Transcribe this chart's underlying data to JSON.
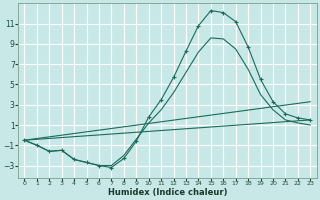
{
  "xlabel": "Humidex (Indice chaleur)",
  "bg_color": "#c8e8e8",
  "grid_color": "#ffffff",
  "line_color": "#1a6b5a",
  "xlim": [
    -0.5,
    23.5
  ],
  "ylim": [
    -4.2,
    13.0
  ],
  "yticks": [
    -3,
    -1,
    1,
    3,
    5,
    7,
    9,
    11
  ],
  "xticks": [
    0,
    1,
    2,
    3,
    4,
    5,
    6,
    7,
    8,
    9,
    10,
    11,
    12,
    13,
    14,
    15,
    16,
    17,
    18,
    19,
    20,
    21,
    22,
    23
  ],
  "series": [
    {
      "x": [
        0,
        1,
        2,
        3,
        4,
        5,
        6,
        7,
        8,
        9,
        10,
        11,
        12,
        13,
        14,
        15,
        16,
        17,
        18,
        19,
        20,
        21,
        22,
        23
      ],
      "y": [
        -0.5,
        -1.0,
        -1.6,
        -1.5,
        -2.4,
        -2.7,
        -3.0,
        -3.2,
        -2.3,
        -0.6,
        1.8,
        3.5,
        5.7,
        8.3,
        10.8,
        12.3,
        12.1,
        11.2,
        8.7,
        5.5,
        3.3,
        2.1,
        1.7,
        1.5
      ],
      "has_marker": true
    },
    {
      "x": [
        0,
        1,
        2,
        3,
        4,
        5,
        6,
        7,
        8,
        9,
        10,
        11,
        12,
        13,
        14,
        15,
        16,
        17,
        18,
        19,
        20,
        21,
        22,
        23
      ],
      "y": [
        -0.5,
        -1.0,
        -1.6,
        -1.5,
        -2.4,
        -2.7,
        -3.0,
        -3.0,
        -2.0,
        -0.4,
        1.2,
        2.5,
        4.2,
        6.2,
        8.2,
        9.6,
        9.5,
        8.5,
        6.5,
        4.0,
        2.5,
        1.5,
        1.2,
        1.0
      ],
      "has_marker": false
    },
    {
      "x": [
        0,
        23
      ],
      "y": [
        -0.5,
        3.3
      ],
      "has_marker": false
    },
    {
      "x": [
        0,
        23
      ],
      "y": [
        -0.5,
        1.5
      ],
      "has_marker": false
    }
  ]
}
